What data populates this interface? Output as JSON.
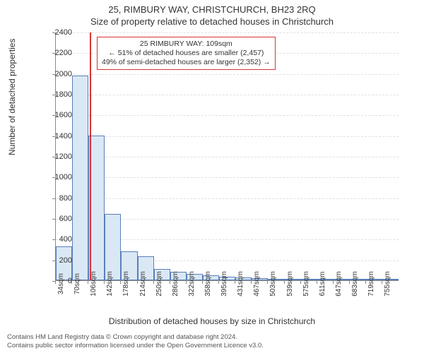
{
  "title_main": "25, RIMBURY WAY, CHRISTCHURCH, BH23 2RQ",
  "title_sub": "Size of property relative to detached houses in Christchurch",
  "ylabel": "Number of detached properties",
  "xlabel": "Distribution of detached houses by size in Christchurch",
  "footer_line1": "Contains HM Land Registry data © Crown copyright and database right 2024.",
  "footer_line2": "Contains public sector information licensed under the Open Government Licence v3.0.",
  "chart": {
    "type": "histogram",
    "background_color": "#ffffff",
    "grid_color": "#e0e0e0",
    "axis_color": "#888888",
    "bar_fill": "#dae8f5",
    "bar_stroke": "#5a7fb9",
    "marker_color": "#d93333",
    "ylim": [
      0,
      2400
    ],
    "ytick_step": 200,
    "yticks": [
      0,
      200,
      400,
      600,
      800,
      1000,
      1200,
      1400,
      1600,
      1800,
      2000,
      2200,
      2400
    ],
    "xticks_labels": [
      "34sqm",
      "70sqm",
      "106sqm",
      "142sqm",
      "178sqm",
      "214sqm",
      "250sqm",
      "286sqm",
      "322sqm",
      "358sqm",
      "395sqm",
      "431sqm",
      "467sqm",
      "503sqm",
      "539sqm",
      "575sqm",
      "611sqm",
      "647sqm",
      "683sqm",
      "719sqm",
      "755sqm"
    ],
    "bin_width_sqm": 36,
    "x_start_sqm": 34,
    "x_end_sqm": 791,
    "bars": [
      330,
      1980,
      1400,
      640,
      280,
      230,
      110,
      85,
      60,
      50,
      35,
      25,
      20,
      15,
      10,
      8,
      6,
      5,
      4,
      3,
      2
    ],
    "marker_value_sqm": 109,
    "annotation": {
      "line1": "25 RIMBURY WAY: 109sqm",
      "line2": "← 51% of detached houses are smaller (2,457)",
      "line3": "49% of semi-detached houses are larger (2,352) →",
      "border_color": "#d93333",
      "fontsize": 10.5
    },
    "title_fontsize": 13,
    "label_fontsize": 12,
    "tick_fontsize": 11
  }
}
